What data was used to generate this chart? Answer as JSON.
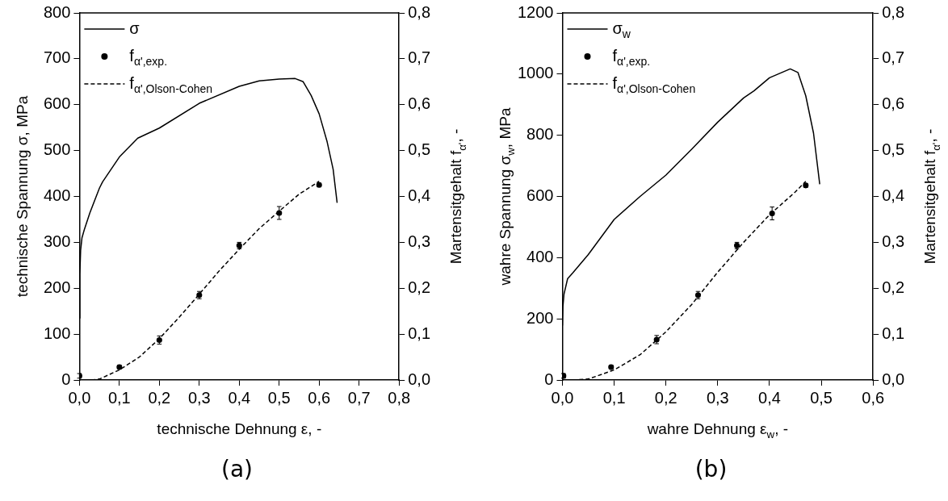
{
  "chart_data": [
    {
      "type": "line",
      "xlabel": "technische Dehnung ε, -",
      "ylabel": "technische Spannung σ, MPa",
      "y2label": "Martensitgehalt f$_{α'}$, -",
      "annotations": [
        "(a)"
      ],
      "legend": "top left",
      "grid": false,
      "xlim": [
        0,
        0.8
      ],
      "xticks": [
        {
          "value": 0,
          "label": "0,0"
        },
        {
          "value": 0.1,
          "label": "0,1"
        },
        {
          "value": 0.2,
          "label": "0,2"
        },
        {
          "value": 0.3,
          "label": "0,3"
        },
        {
          "value": 0.4,
          "label": "0,4"
        },
        {
          "value": 0.5,
          "label": "0,5"
        },
        {
          "value": 0.6,
          "label": "0,6"
        },
        {
          "value": 0.7,
          "label": "0,7"
        },
        {
          "value": 0.8,
          "label": "0,8"
        }
      ],
      "ylim": [
        0,
        800
      ],
      "yticks": [
        0,
        100,
        200,
        300,
        400,
        500,
        600,
        700,
        800
      ],
      "y2lim": [
        0,
        0.8
      ],
      "y2ticks": [
        {
          "value": 0,
          "label": "0,0"
        },
        {
          "value": 0.1,
          "label": "0,1"
        },
        {
          "value": 0.2,
          "label": "0,2"
        },
        {
          "value": 0.3,
          "label": "0,3"
        },
        {
          "value": 0.4,
          "label": "0,4"
        },
        {
          "value": 0.5,
          "label": "0,5"
        },
        {
          "value": 0.6,
          "label": "0,6"
        },
        {
          "value": 0.7,
          "label": "0,7"
        },
        {
          "value": 0.8,
          "label": "0,8"
        }
      ],
      "series": [
        {
          "name": "σ",
          "type": "line",
          "color": "#000000",
          "marker": "none",
          "line_style": "solid",
          "x": [
            0,
            0.001,
            0.003,
            0.0064,
            0.012,
            0.026,
            0.05,
            0.058,
            0.1,
            0.146,
            0.2,
            0.3,
            0.4,
            0.45,
            0.5,
            0.54,
            0.56,
            0.58,
            0.6,
            0.62,
            0.635,
            0.645
          ],
          "values": [
            135,
            230,
            283,
            310,
            327,
            364,
            418,
            432,
            486,
            527,
            549,
            603,
            640,
            652,
            656,
            657,
            650,
            620,
            580,
            519,
            459,
            386
          ]
        },
        {
          "name": "f$_{α',exp.}$",
          "type": "scatter",
          "axis": "y2",
          "color": "#000000",
          "x": [
            0,
            0.1,
            0.2,
            0.3,
            0.4,
            0.5,
            0.6
          ],
          "values": [
            0.009,
            0.028,
            0.087,
            0.185,
            0.293,
            0.364,
            0.425
          ],
          "errors": [
            0.005,
            0.004,
            0.009,
            0.008,
            0.007,
            0.014,
            0.004
          ]
        },
        {
          "name": "f$_{α',Olson-Cohen}$",
          "type": "line",
          "axis": "y2",
          "color": "#000000",
          "marker": "none",
          "line_style": "dashed",
          "x": [
            0.03,
            0.05,
            0.1,
            0.15,
            0.2,
            0.25,
            0.3,
            0.35,
            0.4,
            0.45,
            0.5,
            0.55,
            0.6
          ],
          "values": [
            0,
            0.002,
            0.022,
            0.05,
            0.09,
            0.137,
            0.187,
            0.238,
            0.285,
            0.33,
            0.368,
            0.405,
            0.433
          ]
        }
      ]
    },
    {
      "type": "line",
      "xlabel": "wahre Dehnung ε$_{w}$, -",
      "ylabel": "wahre Spannung σ$_{w}$, MPa",
      "y2label": "Martensitgehalt f$_{α'}$, -",
      "annotations": [
        "(b)"
      ],
      "legend": "top left",
      "grid": false,
      "xlim": [
        0,
        0.6
      ],
      "xticks": [
        {
          "value": 0,
          "label": "0,0"
        },
        {
          "value": 0.1,
          "label": "0,1"
        },
        {
          "value": 0.2,
          "label": "0,2"
        },
        {
          "value": 0.3,
          "label": "0,3"
        },
        {
          "value": 0.4,
          "label": "0,4"
        },
        {
          "value": 0.5,
          "label": "0,5"
        },
        {
          "value": 0.6,
          "label": "0,6"
        }
      ],
      "ylim": [
        0,
        1200
      ],
      "yticks": [
        0,
        200,
        400,
        600,
        800,
        1000,
        1200
      ],
      "y2lim": [
        0,
        0.8
      ],
      "y2ticks": [
        {
          "value": 0,
          "label": "0,0"
        },
        {
          "value": 0.1,
          "label": "0,1"
        },
        {
          "value": 0.2,
          "label": "0,2"
        },
        {
          "value": 0.3,
          "label": "0,3"
        },
        {
          "value": 0.4,
          "label": "0,4"
        },
        {
          "value": 0.5,
          "label": "0,5"
        },
        {
          "value": 0.6,
          "label": "0,6"
        },
        {
          "value": 0.7,
          "label": "0,7"
        },
        {
          "value": 0.8,
          "label": "0,8"
        }
      ],
      "series": [
        {
          "name": "σ$_{w}$",
          "type": "line",
          "color": "#000000",
          "marker": "none",
          "line_style": "solid",
          "x": [
            0,
            0.001,
            0.003,
            0.01,
            0.02,
            0.05,
            0.1,
            0.15,
            0.2,
            0.25,
            0.3,
            0.35,
            0.37,
            0.4,
            0.44,
            0.455,
            0.47,
            0.485,
            0.497
          ],
          "values": [
            178,
            240,
            280,
            331,
            350,
            410,
            525,
            600,
            670,
            755,
            843,
            922,
            945,
            988,
            1017,
            1005,
            929,
            807,
            640
          ]
        },
        {
          "name": "f$_{α',exp.}$",
          "type": "scatter",
          "axis": "y2",
          "color": "#000000",
          "x": [
            0.002,
            0.094,
            0.182,
            0.262,
            0.337,
            0.405,
            0.47
          ],
          "values": [
            0.009,
            0.028,
            0.088,
            0.185,
            0.293,
            0.363,
            0.424
          ],
          "errors": [
            0.005,
            0.004,
            0.009,
            0.008,
            0.007,
            0.014,
            0.004
          ]
        },
        {
          "name": "f$_{α',Olson-Cohen}$",
          "type": "line",
          "axis": "y2",
          "color": "#000000",
          "marker": "none",
          "line_style": "dashed",
          "x": [
            0.02,
            0.05,
            0.1,
            0.15,
            0.2,
            0.25,
            0.3,
            0.35,
            0.4,
            0.45,
            0.47
          ],
          "values": [
            0,
            0.002,
            0.022,
            0.055,
            0.105,
            0.165,
            0.235,
            0.3,
            0.36,
            0.41,
            0.433
          ]
        }
      ]
    }
  ]
}
